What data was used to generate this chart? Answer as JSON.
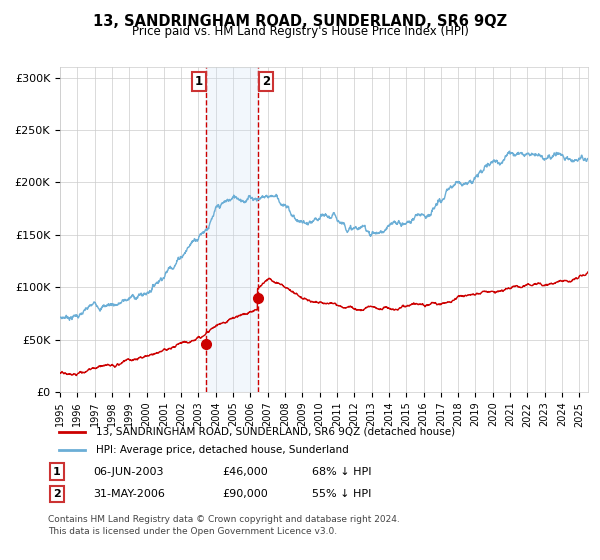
{
  "title": "13, SANDRINGHAM ROAD, SUNDERLAND, SR6 9QZ",
  "subtitle": "Price paid vs. HM Land Registry's House Price Index (HPI)",
  "legend_line1": "13, SANDRINGHAM ROAD, SUNDERLAND, SR6 9QZ (detached house)",
  "legend_line2": "HPI: Average price, detached house, Sunderland",
  "table_row1": [
    "1",
    "06-JUN-2003",
    "£46,000",
    "68% ↓ HPI"
  ],
  "table_row2": [
    "2",
    "31-MAY-2006",
    "£90,000",
    "55% ↓ HPI"
  ],
  "footnote1": "Contains HM Land Registry data © Crown copyright and database right 2024.",
  "footnote2": "This data is licensed under the Open Government Licence v3.0.",
  "sale1_year": 2003.44,
  "sale2_year": 2006.41,
  "sale1_price": 46000,
  "sale2_price": 90000,
  "hpi_color": "#6baed6",
  "price_color": "#cc0000",
  "shade_color": "#cce0f5",
  "grid_color": "#cccccc",
  "bg_color": "#ffffff",
  "ylim_max": 310000,
  "xmin": 1995,
  "xmax": 2025.5
}
